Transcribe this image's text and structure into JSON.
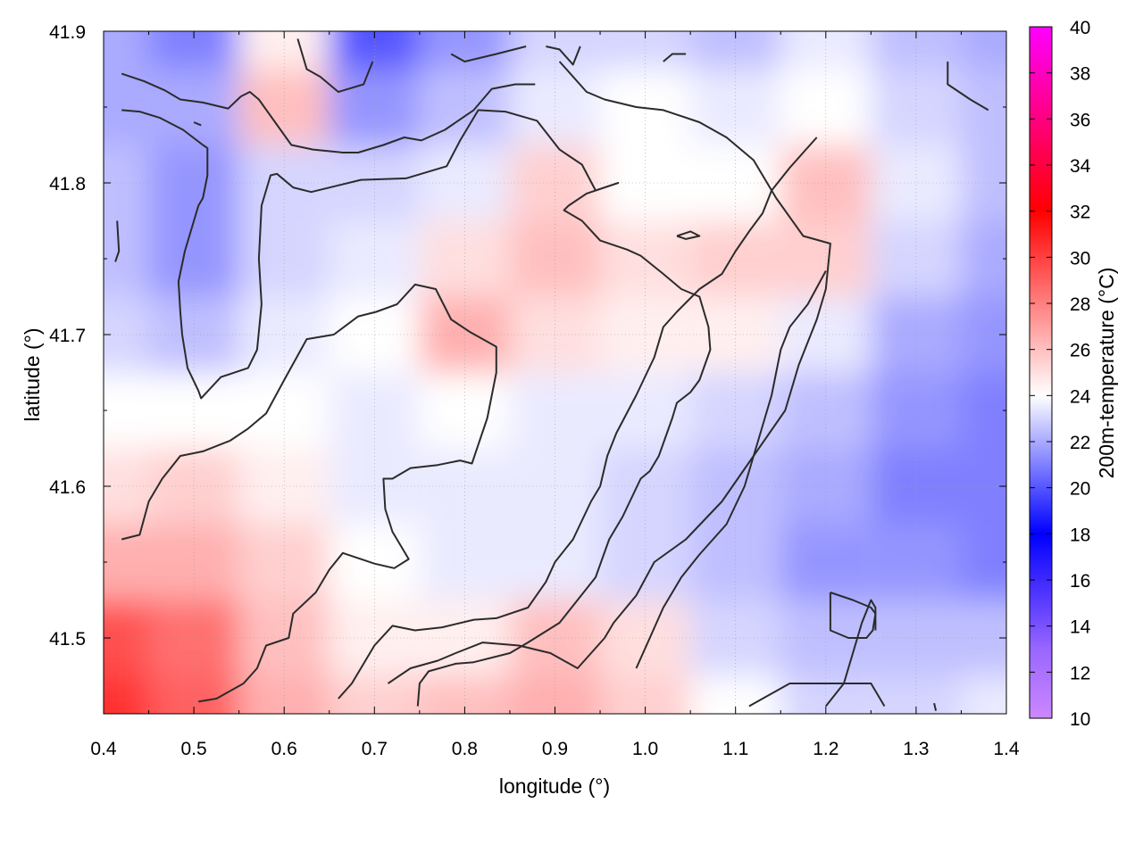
{
  "chart_data": {
    "type": "heatmap",
    "title": "",
    "xlabel": "longitude (°)",
    "ylabel": "latitude (°)",
    "colorbar_label": "200m-temperature (°C)",
    "xlim": [
      0.4,
      1.4
    ],
    "ylim": [
      41.45,
      41.9
    ],
    "x_ticks": [
      "0.4",
      "0.5",
      "0.6",
      "0.7",
      "0.8",
      "0.9",
      "1.0",
      "1.1",
      "1.2",
      "1.3",
      "1.4"
    ],
    "y_ticks": [
      "41.5",
      "41.6",
      "41.7",
      "41.8",
      "41.9"
    ],
    "colorbar_range": [
      10,
      40
    ],
    "colorbar_ticks": [
      "10",
      "12",
      "14",
      "16",
      "18",
      "20",
      "22",
      "24",
      "26",
      "28",
      "30",
      "32",
      "34",
      "36",
      "38",
      "40"
    ],
    "colorscale": [
      {
        "value": 10,
        "color": "#cc88ff"
      },
      {
        "value": 13,
        "color": "#9966ff"
      },
      {
        "value": 18,
        "color": "#0000ff"
      },
      {
        "value": 24,
        "color": "#ffffff"
      },
      {
        "value": 32,
        "color": "#ff0000"
      },
      {
        "value": 40,
        "color": "#ff00ff"
      }
    ],
    "grid": true,
    "field": {
      "x": [
        0.4,
        0.5,
        0.6,
        0.7,
        0.8,
        0.9,
        1.0,
        1.1,
        1.2,
        1.3,
        1.4
      ],
      "y": [
        41.9,
        41.85,
        41.8,
        41.75,
        41.7,
        41.65,
        41.6,
        41.55,
        41.5,
        41.45
      ],
      "values": [
        [
          22.0,
          21.0,
          24.5,
          20.0,
          21.5,
          23.0,
          23.0,
          22.5,
          23.5,
          22.5,
          22.0
        ],
        [
          22.0,
          22.0,
          26.0,
          21.5,
          22.5,
          23.5,
          24.0,
          23.5,
          24.0,
          23.0,
          22.5
        ],
        [
          22.5,
          21.5,
          23.0,
          23.0,
          23.5,
          25.5,
          24.0,
          24.0,
          26.0,
          23.5,
          22.5
        ],
        [
          22.5,
          21.5,
          23.0,
          23.5,
          25.0,
          26.0,
          25.0,
          25.5,
          25.5,
          23.0,
          22.0
        ],
        [
          23.0,
          22.5,
          23.5,
          24.0,
          26.5,
          25.0,
          24.5,
          24.5,
          23.5,
          22.0,
          21.5
        ],
        [
          24.0,
          24.0,
          24.0,
          23.5,
          24.0,
          23.5,
          23.5,
          23.0,
          22.5,
          21.5,
          21.0
        ],
        [
          25.0,
          25.5,
          24.5,
          23.5,
          23.5,
          23.5,
          23.0,
          22.5,
          22.0,
          21.0,
          21.0
        ],
        [
          26.5,
          26.5,
          25.5,
          24.0,
          23.5,
          23.5,
          23.0,
          22.5,
          21.5,
          21.5,
          21.0
        ],
        [
          29.5,
          28.5,
          26.0,
          24.5,
          24.5,
          26.0,
          25.0,
          23.0,
          22.5,
          22.5,
          22.5
        ],
        [
          30.5,
          29.0,
          26.5,
          25.5,
          26.0,
          26.5,
          25.5,
          24.0,
          23.0,
          23.0,
          23.5
        ]
      ]
    },
    "contours": [
      [
        [
          0.42,
          41.872
        ],
        [
          0.445,
          41.867
        ],
        [
          0.468,
          41.861
        ],
        [
          0.485,
          41.855
        ],
        [
          0.51,
          41.853
        ],
        [
          0.538,
          41.849
        ],
        [
          0.552,
          41.857
        ],
        [
          0.562,
          41.86
        ],
        [
          0.572,
          41.855
        ],
        [
          0.59,
          41.84
        ],
        [
          0.608,
          41.825
        ],
        [
          0.632,
          41.822
        ],
        [
          0.665,
          41.82
        ],
        [
          0.682,
          41.82
        ],
        [
          0.71,
          41.825
        ],
        [
          0.733,
          41.83
        ],
        [
          0.752,
          41.828
        ],
        [
          0.778,
          41.835
        ],
        [
          0.81,
          41.848
        ],
        [
          0.83,
          41.862
        ],
        [
          0.856,
          41.865
        ],
        [
          0.878,
          41.865
        ]
      ],
      [
        [
          0.42,
          41.848
        ],
        [
          0.44,
          41.847
        ],
        [
          0.462,
          41.843
        ],
        [
          0.488,
          41.835
        ],
        [
          0.51,
          41.825
        ],
        [
          0.515,
          41.823
        ],
        [
          0.515,
          41.805
        ],
        [
          0.51,
          41.79
        ],
        [
          0.505,
          41.785
        ],
        [
          0.49,
          41.755
        ],
        [
          0.483,
          41.735
        ],
        [
          0.485,
          41.715
        ],
        [
          0.487,
          41.7
        ],
        [
          0.493,
          41.678
        ],
        [
          0.505,
          41.663
        ],
        [
          0.508,
          41.658
        ],
        [
          0.53,
          41.672
        ],
        [
          0.56,
          41.678
        ],
        [
          0.57,
          41.69
        ],
        [
          0.575,
          41.72
        ],
        [
          0.572,
          41.75
        ],
        [
          0.575,
          41.785
        ],
        [
          0.585,
          41.805
        ],
        [
          0.592,
          41.806
        ],
        [
          0.61,
          41.797
        ],
        [
          0.63,
          41.794
        ],
        [
          0.685,
          41.802
        ],
        [
          0.735,
          41.803
        ],
        [
          0.78,
          41.811
        ],
        [
          0.795,
          41.828
        ],
        [
          0.815,
          41.848
        ],
        [
          0.845,
          41.847
        ],
        [
          0.88,
          41.841
        ],
        [
          0.905,
          41.822
        ],
        [
          0.93,
          41.812
        ],
        [
          0.945,
          41.795
        ],
        [
          0.97,
          41.8
        ],
        [
          0.935,
          41.793
        ],
        [
          0.915,
          41.785
        ],
        [
          0.91,
          41.782
        ],
        [
          0.93,
          41.775
        ],
        [
          0.95,
          41.762
        ],
        [
          0.98,
          41.756
        ],
        [
          0.995,
          41.752
        ],
        [
          1.02,
          41.74
        ],
        [
          1.04,
          41.73
        ],
        [
          1.06,
          41.725
        ],
        [
          1.07,
          41.705
        ],
        [
          1.072,
          41.69
        ],
        [
          1.06,
          41.67
        ],
        [
          1.05,
          41.662
        ],
        [
          1.035,
          41.655
        ],
        [
          1.03,
          41.645
        ],
        [
          1.015,
          41.62
        ],
        [
          1.005,
          41.61
        ],
        [
          0.995,
          41.605
        ],
        [
          0.975,
          41.58
        ],
        [
          0.96,
          41.565
        ],
        [
          0.945,
          41.54
        ],
        [
          0.925,
          41.525
        ],
        [
          0.905,
          41.51
        ],
        [
          0.87,
          41.497
        ],
        [
          0.85,
          41.49
        ],
        [
          0.81,
          41.484
        ],
        [
          0.79,
          41.483
        ],
        [
          0.76,
          41.478
        ],
        [
          0.75,
          41.47
        ],
        [
          0.748,
          41.455
        ]
      ],
      [
        [
          0.5,
          41.84
        ],
        [
          0.508,
          41.838
        ]
      ],
      [
        [
          0.42,
          41.565
        ],
        [
          0.44,
          41.568
        ],
        [
          0.45,
          41.59
        ],
        [
          0.465,
          41.605
        ],
        [
          0.485,
          41.62
        ],
        [
          0.51,
          41.623
        ],
        [
          0.54,
          41.63
        ],
        [
          0.56,
          41.638
        ],
        [
          0.58,
          41.648
        ],
        [
          0.6,
          41.67
        ],
        [
          0.625,
          41.697
        ],
        [
          0.655,
          41.7
        ],
        [
          0.682,
          41.712
        ],
        [
          0.702,
          41.715
        ],
        [
          0.725,
          41.72
        ],
        [
          0.745,
          41.733
        ],
        [
          0.768,
          41.73
        ],
        [
          0.785,
          41.71
        ],
        [
          0.805,
          41.702
        ],
        [
          0.835,
          41.692
        ],
        [
          0.835,
          41.675
        ],
        [
          0.825,
          41.645
        ],
        [
          0.808,
          41.615
        ],
        [
          0.795,
          41.617
        ],
        [
          0.77,
          41.614
        ],
        [
          0.74,
          41.612
        ],
        [
          0.72,
          41.605
        ],
        [
          0.71,
          41.605
        ],
        [
          0.712,
          41.585
        ],
        [
          0.72,
          41.57
        ],
        [
          0.738,
          41.552
        ],
        [
          0.722,
          41.546
        ],
        [
          0.7,
          41.549
        ],
        [
          0.665,
          41.556
        ],
        [
          0.65,
          41.545
        ],
        [
          0.635,
          41.53
        ],
        [
          0.61,
          41.516
        ],
        [
          0.605,
          41.5
        ],
        [
          0.58,
          41.495
        ],
        [
          0.57,
          41.48
        ],
        [
          0.555,
          41.47
        ],
        [
          0.525,
          41.46
        ],
        [
          0.505,
          41.458
        ]
      ],
      [
        [
          0.66,
          41.46
        ],
        [
          0.675,
          41.47
        ],
        [
          0.7,
          41.495
        ],
        [
          0.72,
          41.508
        ],
        [
          0.745,
          41.505
        ],
        [
          0.775,
          41.507
        ],
        [
          0.81,
          41.512
        ],
        [
          0.835,
          41.513
        ],
        [
          0.87,
          41.52
        ],
        [
          0.89,
          41.537
        ],
        [
          0.9,
          41.55
        ],
        [
          0.92,
          41.565
        ],
        [
          0.94,
          41.59
        ],
        [
          0.95,
          41.6
        ],
        [
          0.958,
          41.62
        ],
        [
          0.968,
          41.635
        ],
        [
          0.99,
          41.66
        ],
        [
          1.01,
          41.685
        ],
        [
          1.02,
          41.705
        ],
        [
          1.035,
          41.715
        ],
        [
          1.06,
          41.73
        ],
        [
          1.085,
          41.74
        ],
        [
          1.1,
          41.755
        ],
        [
          1.115,
          41.768
        ],
        [
          1.13,
          41.78
        ],
        [
          1.14,
          41.795
        ],
        [
          1.16,
          41.81
        ],
        [
          1.175,
          41.82
        ],
        [
          1.19,
          41.83
        ]
      ],
      [
        [
          0.715,
          41.47
        ],
        [
          0.74,
          41.48
        ],
        [
          0.77,
          41.485
        ],
        [
          0.79,
          41.49
        ],
        [
          0.82,
          41.497
        ],
        [
          0.86,
          41.495
        ],
        [
          0.895,
          41.49
        ],
        [
          0.925,
          41.48
        ],
        [
          0.955,
          41.5
        ],
        [
          0.965,
          41.51
        ],
        [
          0.99,
          41.528
        ],
        [
          1.01,
          41.55
        ],
        [
          1.045,
          41.565
        ],
        [
          1.085,
          41.59
        ],
        [
          1.12,
          41.62
        ],
        [
          1.155,
          41.65
        ],
        [
          1.17,
          41.68
        ],
        [
          1.19,
          41.71
        ],
        [
          1.2,
          41.73
        ],
        [
          1.205,
          41.76
        ],
        [
          1.175,
          41.765
        ],
        [
          1.145,
          41.79
        ],
        [
          1.12,
          41.815
        ],
        [
          1.09,
          41.83
        ],
        [
          1.06,
          41.84
        ],
        [
          1.02,
          41.848
        ],
        [
          0.99,
          41.85
        ],
        [
          0.955,
          41.855
        ],
        [
          0.935,
          41.86
        ],
        [
          0.905,
          41.88
        ]
      ],
      [
        [
          0.99,
          41.48
        ],
        [
          1.005,
          41.5
        ],
        [
          1.02,
          41.52
        ],
        [
          1.04,
          41.54
        ],
        [
          1.06,
          41.555
        ],
        [
          1.09,
          41.575
        ],
        [
          1.11,
          41.6
        ],
        [
          1.125,
          41.63
        ],
        [
          1.14,
          41.66
        ],
        [
          1.15,
          41.69
        ],
        [
          1.16,
          41.705
        ],
        [
          1.18,
          41.72
        ],
        [
          1.2,
          41.742
        ]
      ],
      [
        [
          0.615,
          41.895
        ],
        [
          0.625,
          41.875
        ],
        [
          0.64,
          41.87
        ],
        [
          0.66,
          41.86
        ],
        [
          0.688,
          41.865
        ],
        [
          0.698,
          41.88
        ]
      ],
      [
        [
          0.785,
          41.885
        ],
        [
          0.8,
          41.88
        ],
        [
          0.835,
          41.885
        ],
        [
          0.868,
          41.89
        ]
      ],
      [
        [
          0.89,
          41.89
        ],
        [
          0.905,
          41.888
        ],
        [
          0.92,
          41.878
        ],
        [
          0.928,
          41.89
        ]
      ],
      [
        [
          1.02,
          41.88
        ],
        [
          1.03,
          41.885
        ],
        [
          1.045,
          41.885
        ]
      ],
      [
        [
          1.335,
          41.88
        ],
        [
          1.335,
          41.865
        ],
        [
          1.36,
          41.855
        ],
        [
          1.38,
          41.848
        ]
      ],
      [
        [
          1.035,
          41.765
        ],
        [
          1.05,
          41.768
        ],
        [
          1.06,
          41.765
        ],
        [
          1.045,
          41.763
        ],
        [
          1.035,
          41.765
        ]
      ],
      [
        [
          0.415,
          41.775
        ],
        [
          0.417,
          41.755
        ],
        [
          0.413,
          41.748
        ]
      ],
      [
        [
          1.205,
          41.53
        ],
        [
          1.23,
          41.525
        ],
        [
          1.25,
          41.52
        ],
        [
          1.255,
          41.516
        ],
        [
          1.252,
          41.505
        ],
        [
          1.245,
          41.5
        ],
        [
          1.225,
          41.5
        ],
        [
          1.205,
          41.505
        ],
        [
          1.205,
          41.53
        ]
      ],
      [
        [
          1.115,
          41.455
        ],
        [
          1.13,
          41.46
        ],
        [
          1.16,
          41.47
        ],
        [
          1.2,
          41.47
        ],
        [
          1.25,
          41.47
        ],
        [
          1.265,
          41.455
        ]
      ],
      [
        [
          1.32,
          41.457
        ],
        [
          1.322,
          41.452
        ]
      ],
      [
        [
          1.2,
          41.455
        ],
        [
          1.22,
          41.47
        ],
        [
          1.24,
          41.51
        ],
        [
          1.25,
          41.525
        ],
        [
          1.255,
          41.52
        ],
        [
          1.255,
          41.505
        ]
      ]
    ]
  }
}
